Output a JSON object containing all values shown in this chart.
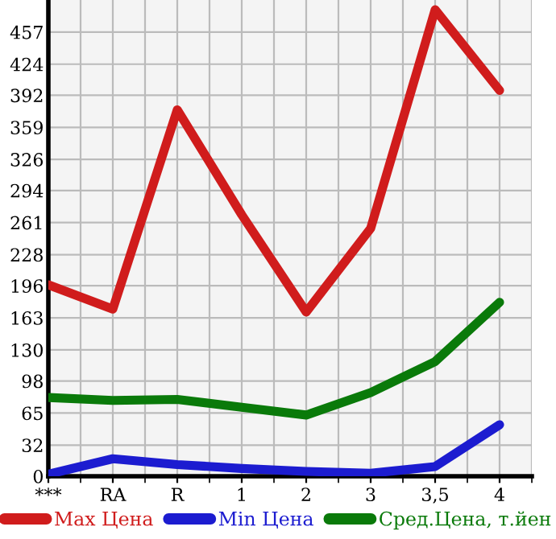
{
  "chart_data": {
    "type": "line",
    "categories": [
      "***",
      "RA",
      "R",
      "1",
      "2",
      "3",
      "3,5",
      "4"
    ],
    "series": [
      {
        "name": "Max Цена",
        "color": "#d01c1c",
        "values": [
          197,
          172,
          377,
          269,
          169,
          255,
          480,
          397
        ]
      },
      {
        "name": "Min Цена",
        "color": "#1c1cd0",
        "values": [
          2,
          18,
          12,
          8,
          5,
          3,
          10,
          53
        ]
      },
      {
        "name": "Сред.Цена, т.йен",
        "color": "#0a7a0a",
        "values": [
          81,
          78,
          79,
          71,
          63,
          86,
          118,
          179
        ]
      }
    ],
    "ylim": [
      0,
      490
    ],
    "yticks": [
      0,
      32,
      65,
      98,
      130,
      163,
      196,
      228,
      261,
      294,
      326,
      359,
      392,
      424,
      457
    ],
    "grid": true,
    "legend": "bottom",
    "marker": "none",
    "line_style": "solid"
  }
}
